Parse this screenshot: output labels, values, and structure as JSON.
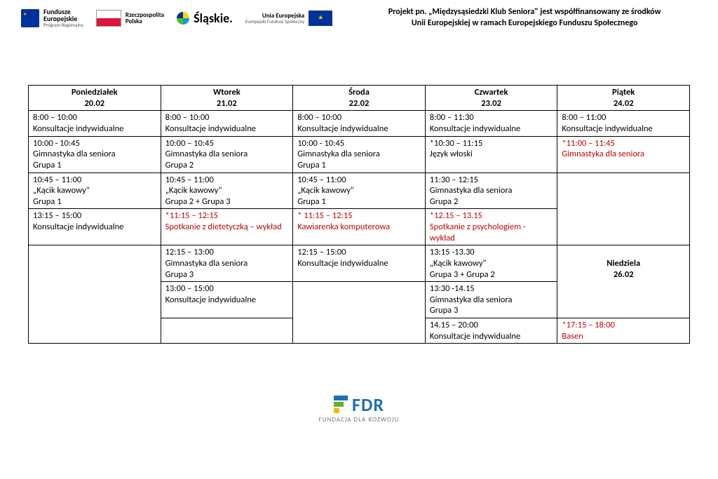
{
  "header": {
    "fe": {
      "l1": "Fundusze",
      "l2": "Europejskie",
      "l3": "Program Regionalny"
    },
    "rp": {
      "l1": "Rzeczpospolita",
      "l2": "Polska"
    },
    "sl": {
      "txt": "Śląskie."
    },
    "ue": {
      "l1": "Unia Europejska",
      "l2": "Europejski Fundusz Społeczny"
    },
    "project_l1": "Projekt pn. „Międzysąsiedzki Klub Seniora\" jest współfinansowany ze środków",
    "project_l2": "Unii Europejskiej w ramach Europejskiego Funduszu Społecznego"
  },
  "days": {
    "mon": {
      "name": "Poniedziałek",
      "date": "20.02"
    },
    "tue": {
      "name": "Wtorek",
      "date": "21.02"
    },
    "wed": {
      "name": "Środa",
      "date": "22.02"
    },
    "thu": {
      "name": "Czwartek",
      "date": "23.02"
    },
    "fri": {
      "name": "Piątek",
      "date": "24.02"
    },
    "sun": {
      "name": "Niedziela",
      "date": "26.02"
    }
  },
  "rows": {
    "r1": {
      "mon": "8:00 – 10:00\nKonsultacje indywidualne",
      "tue": "8:00 – 10:00\nKonsultacje indywidualne",
      "wed": "8:00 – 10:00\nKonsultacje indywidualne",
      "thu": "8:00 – 11:30\nKonsultacje indywidualne",
      "fri": "8:00 – 11:00\nKonsultacje indywidualne"
    },
    "r2": {
      "mon": "10:00 - 10:45\nGimnastyka dla seniora\nGrupa 1",
      "tue": "10:00 – 10:45\nGimnastyka dla seniora\nGrupa 2",
      "wed": "10:00 - 10:45\nGimnastyka dla seniora\nGrupa 1",
      "thu": "*10:30 – 11:15\nJęzyk włoski",
      "fri": "*11:00 – 11:45\nGimnastyka dla seniora"
    },
    "r3": {
      "mon": "10:45 – 11:00\n„Kącik kawowy\"\nGrupa 1",
      "tue": "10:45 – 11:00\n„Kącik kawowy\"\nGrupa 2 + Grupa 3",
      "wed": "10:45 – 11:00\n„Kącik kawowy\"\nGrupa 1",
      "thu": "11:30 – 12:15\nGimnastyka dla seniora\nGrupa 2"
    },
    "r4": {
      "mon": "13:15 – 15:00\nKonsultacje indywidualne",
      "tue": "*11:15 – 12:15\nSpotkanie z dietetyczką – wykład",
      "wed": "* 11:15 – 12:15\nKawiarenka komputerowa",
      "thu": "*12.15 – 13.15\nSpotkanie z psychologiem - wykład"
    },
    "r5": {
      "tue": "12:15 – 13:00\nGimnastyka dla seniora\nGrupa 3",
      "wed": "12:15 – 15:00\nKonsultacje indywidualne",
      "thu": "13:15 -13.30\n„Kącik kawowy\"\nGrupa 3 + Grupa 2"
    },
    "r6": {
      "tue": "13:00 – 15:00\nKonsultacje indywidualne",
      "thu": "13:30 -14.15\nGimnastyka dla seniora\nGrupa 3"
    },
    "r7": {
      "thu": "14.15 – 20:00\nKonsultacje indywidualne",
      "fri": "*17:15 – 18:00\n   Basen"
    }
  },
  "footer": {
    "txt": "FDR",
    "sub": "FUNDACJA DLA ROZWOJU"
  }
}
